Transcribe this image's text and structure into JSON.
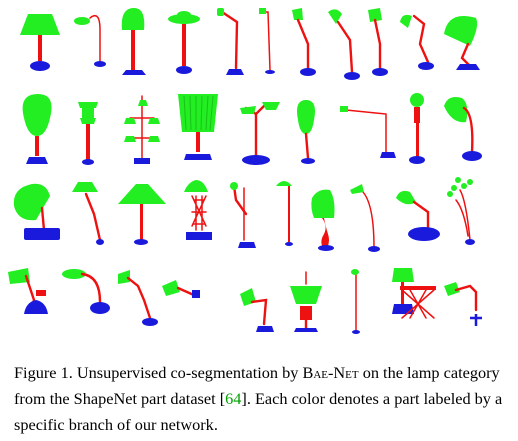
{
  "colors": {
    "shade": "#22ee22",
    "stem": "#ee1111",
    "base": "#1a1add",
    "ref": "#00a000"
  },
  "figure": {
    "rows": [
      [
        "cone-shade",
        "arc",
        "bell-on-pole",
        "saucer",
        "bent-arm",
        "thin-arm",
        "gooseneck",
        "desk-arm",
        "lean-arm",
        "arc-lamp",
        "dish"
      ],
      [
        "bulb-lamp",
        "lantern",
        "tree-lamp",
        "pleated",
        "multi-shade",
        "oval-shade",
        "long-arm",
        "urn",
        "big-dish"
      ],
      [
        "tilted-bell",
        "tall-tripod",
        "cone-shade",
        "lattice",
        "hook-arm",
        "short-tall",
        "swing-arm",
        "floor-arc",
        "angle-desk",
        "branches"
      ],
      [
        "scissor-clamp",
        "side-arm",
        "elbow",
        "clamp-small",
        "slant-floor",
        "pendant",
        "thin-tall",
        "small-shade",
        "accordion",
        "wall-arm"
      ]
    ]
  },
  "caption": {
    "part1": "Figure 1. Unsupervised co-segmentation by ",
    "net_name": "Bae-Net",
    "part2": " on the lamp category from the ShapeNet part dataset [",
    "ref": "64",
    "part3": "]. Each color denotes a part labeled by a specific branch of our network."
  }
}
